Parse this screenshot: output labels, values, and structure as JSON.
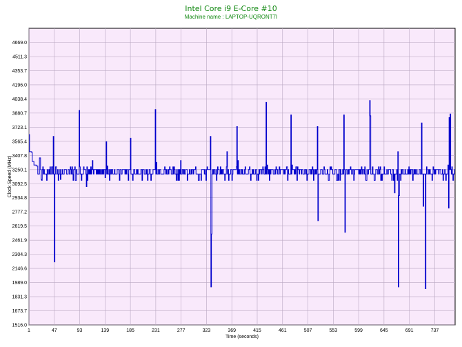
{
  "chart_data": {
    "type": "line",
    "title": "Intel Core i9 E-Core #10",
    "subtitle": "Machine name : LAPTOP-UQRONT7I",
    "xlabel": "Time (seconds)",
    "ylabel": "Clock Speed (MHz)",
    "xlim": [
      1,
      774
    ],
    "ylim": [
      1516.0,
      4826.9
    ],
    "x_ticks": [
      1,
      47,
      93,
      139,
      185,
      231,
      277,
      323,
      369,
      415,
      461,
      507,
      553,
      599,
      645,
      691,
      737
    ],
    "y_ticks": [
      "1516.0",
      "1673.7",
      "1831.3",
      "1989.0",
      "2146.6",
      "2304.3",
      "2461.9",
      "2619.5",
      "2777.2",
      "2934.8",
      "3092.5",
      "3250.1",
      "3407.8",
      "3565.4",
      "3723.1",
      "3880.7",
      "4038.4",
      "4196.0",
      "4353.7",
      "4511.3",
      "4669.0"
    ],
    "grid": true,
    "series": [
      {
        "color": "#0000cc",
        "baseline": 3200,
        "points": [
          [
            1,
            3640
          ],
          [
            2,
            3450
          ],
          [
            6,
            3440
          ],
          [
            7,
            3340
          ],
          [
            10,
            3300
          ],
          [
            14,
            3290
          ],
          [
            17,
            3200
          ],
          [
            20,
            3380
          ],
          [
            23,
            3140
          ],
          [
            43,
            3280
          ],
          [
            45,
            3620
          ],
          [
            46,
            3200
          ],
          [
            47,
            2220
          ],
          [
            48,
            3200
          ],
          [
            58,
            3140
          ],
          [
            92,
            3910
          ],
          [
            93,
            3280
          ],
          [
            105,
            3060
          ],
          [
            116,
            3350
          ],
          [
            139,
            3160
          ],
          [
            141,
            3560
          ],
          [
            143,
            3290
          ],
          [
            185,
            3600
          ],
          [
            186,
            3200
          ],
          [
            230,
            3920
          ],
          [
            232,
            3330
          ],
          [
            276,
            3350
          ],
          [
            330,
            3620
          ],
          [
            331,
            1940
          ],
          [
            332,
            2530
          ],
          [
            333,
            3200
          ],
          [
            360,
            3450
          ],
          [
            378,
            3730
          ],
          [
            380,
            3350
          ],
          [
            431,
            4000
          ],
          [
            433,
            3300
          ],
          [
            476,
            3860
          ],
          [
            478,
            3300
          ],
          [
            524,
            3730
          ],
          [
            525,
            2680
          ],
          [
            526,
            3200
          ],
          [
            572,
            3860
          ],
          [
            574,
            2550
          ],
          [
            575,
            3200
          ],
          [
            619,
            4020
          ],
          [
            620,
            3850
          ],
          [
            621,
            3200
          ],
          [
            664,
            2990
          ],
          [
            669,
            3130
          ],
          [
            670,
            3450
          ],
          [
            671,
            1940
          ],
          [
            672,
            2960
          ],
          [
            673,
            3200
          ],
          [
            713,
            3770
          ],
          [
            716,
            2840
          ],
          [
            717,
            3200
          ],
          [
            720,
            1920
          ],
          [
            721,
            3200
          ],
          [
            761,
            3300
          ],
          [
            762,
            2820
          ],
          [
            763,
            3830
          ],
          [
            765,
            3870
          ],
          [
            766,
            3250
          ],
          [
            774,
            3250
          ]
        ]
      }
    ]
  }
}
